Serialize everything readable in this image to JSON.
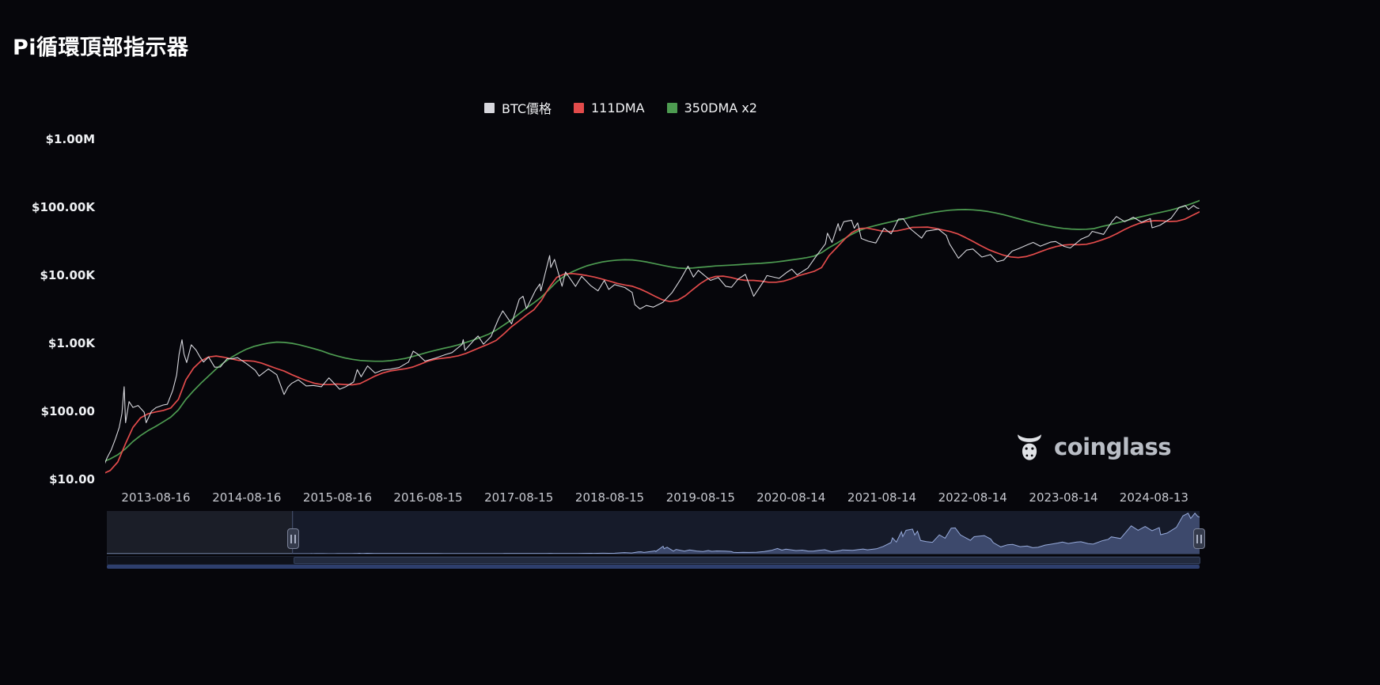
{
  "watermark": {
    "text": "coinglass"
  },
  "chart_data": {
    "type": "line",
    "title": "Pi循環頂部指示器",
    "log_scale": true,
    "legend_position": "top-center",
    "grid": false,
    "ylim": [
      10,
      1000000
    ],
    "y_ticks": [
      {
        "label": "$1.00M",
        "value": 1000000
      },
      {
        "label": "$100.00K",
        "value": 100000
      },
      {
        "label": "$10.00K",
        "value": 10000
      },
      {
        "label": "$1.00K",
        "value": 1000
      },
      {
        "label": "$100.00",
        "value": 100
      },
      {
        "label": "$10.00",
        "value": 10
      }
    ],
    "x_ticks": [
      "2013-08-16",
      "2014-08-16",
      "2015-08-16",
      "2016-08-15",
      "2017-08-15",
      "2018-08-15",
      "2019-08-15",
      "2020-08-14",
      "2021-08-14",
      "2022-08-14",
      "2023-08-14",
      "2024-08-13"
    ],
    "series": [
      {
        "name": "BTC價格",
        "color": "#d7d7dd",
        "width": 1.1,
        "points": [
          [
            "2013-01-05",
            13.4
          ],
          [
            "2013-01-20",
            15.6
          ],
          [
            "2013-02-01",
            20.4
          ],
          [
            "2013-02-19",
            27
          ],
          [
            "2013-03-06",
            40
          ],
          [
            "2013-03-21",
            58
          ],
          [
            "2013-04-01",
            93
          ],
          [
            "2013-04-10",
            230
          ],
          [
            "2013-04-16",
            68
          ],
          [
            "2013-04-30",
            139
          ],
          [
            "2013-05-15",
            114
          ],
          [
            "2013-06-05",
            122
          ],
          [
            "2013-06-30",
            97
          ],
          [
            "2013-07-07",
            68
          ],
          [
            "2013-07-29",
            100
          ],
          [
            "2013-08-16",
            113
          ],
          [
            "2013-09-15",
            124
          ],
          [
            "2013-10-01",
            127
          ],
          [
            "2013-10-23",
            203
          ],
          [
            "2013-11-08",
            340
          ],
          [
            "2013-11-18",
            685
          ],
          [
            "2013-11-30",
            1127
          ],
          [
            "2013-12-07",
            697
          ],
          [
            "2013-12-18",
            522
          ],
          [
            "2014-01-06",
            951
          ],
          [
            "2014-01-26",
            790
          ],
          [
            "2014-02-10",
            636
          ],
          [
            "2014-02-25",
            530
          ],
          [
            "2014-03-15",
            630
          ],
          [
            "2014-04-09",
            445
          ],
          [
            "2014-05-01",
            448
          ],
          [
            "2014-05-29",
            597
          ],
          [
            "2014-06-15",
            590
          ],
          [
            "2014-07-10",
            615
          ],
          [
            "2014-08-16",
            500
          ],
          [
            "2014-09-20",
            400
          ],
          [
            "2014-10-05",
            330
          ],
          [
            "2014-11-12",
            420
          ],
          [
            "2014-12-15",
            345
          ],
          [
            "2015-01-14",
            177
          ],
          [
            "2015-01-30",
            227
          ],
          [
            "2015-02-14",
            257
          ],
          [
            "2015-03-10",
            291
          ],
          [
            "2015-04-12",
            236
          ],
          [
            "2015-05-10",
            240
          ],
          [
            "2015-06-12",
            230
          ],
          [
            "2015-07-12",
            310
          ],
          [
            "2015-08-25",
            211
          ],
          [
            "2015-09-20",
            231
          ],
          [
            "2015-10-20",
            270
          ],
          [
            "2015-11-04",
            410
          ],
          [
            "2015-11-20",
            322
          ],
          [
            "2015-12-15",
            465
          ],
          [
            "2016-01-15",
            365
          ],
          [
            "2016-02-15",
            405
          ],
          [
            "2016-03-15",
            415
          ],
          [
            "2016-04-20",
            440
          ],
          [
            "2016-05-28",
            530
          ],
          [
            "2016-06-16",
            766
          ],
          [
            "2016-07-02",
            700
          ],
          [
            "2016-08-02",
            547
          ],
          [
            "2016-09-15",
            607
          ],
          [
            "2016-10-28",
            690
          ],
          [
            "2016-11-20",
            730
          ],
          [
            "2016-12-30",
            960
          ],
          [
            "2017-01-04",
            1130
          ],
          [
            "2017-01-11",
            790
          ],
          [
            "2017-02-24",
            1180
          ],
          [
            "2017-03-03",
            1280
          ],
          [
            "2017-03-25",
            970
          ],
          [
            "2017-04-25",
            1260
          ],
          [
            "2017-05-25",
            2300
          ],
          [
            "2017-06-11",
            3000
          ],
          [
            "2017-07-16",
            1930
          ],
          [
            "2017-08-17",
            4460
          ],
          [
            "2017-09-01",
            4900
          ],
          [
            "2017-09-15",
            3230
          ],
          [
            "2017-10-21",
            6000
          ],
          [
            "2017-11-08",
            7450
          ],
          [
            "2017-11-12",
            5900
          ],
          [
            "2017-12-17",
            19500
          ],
          [
            "2017-12-22",
            13000
          ],
          [
            "2018-01-06",
            17100
          ],
          [
            "2018-02-06",
            6900
          ],
          [
            "2018-02-20",
            11200
          ],
          [
            "2018-03-30",
            6850
          ],
          [
            "2018-04-24",
            9650
          ],
          [
            "2018-05-29",
            7100
          ],
          [
            "2018-06-29",
            5900
          ],
          [
            "2018-07-24",
            8400
          ],
          [
            "2018-08-11",
            6200
          ],
          [
            "2018-09-04",
            7300
          ],
          [
            "2018-10-15",
            6600
          ],
          [
            "2018-11-14",
            5600
          ],
          [
            "2018-11-25",
            3700
          ],
          [
            "2018-12-15",
            3200
          ],
          [
            "2019-01-10",
            3600
          ],
          [
            "2019-02-08",
            3400
          ],
          [
            "2019-03-16",
            4000
          ],
          [
            "2019-04-23",
            5600
          ],
          [
            "2019-05-27",
            8800
          ],
          [
            "2019-06-26",
            13600
          ],
          [
            "2019-07-17",
            9400
          ],
          [
            "2019-08-06",
            11800
          ],
          [
            "2019-09-25",
            8400
          ],
          [
            "2019-10-26",
            9250
          ],
          [
            "2019-11-25",
            6900
          ],
          [
            "2019-12-18",
            6650
          ],
          [
            "2020-01-14",
            8800
          ],
          [
            "2020-02-13",
            10300
          ],
          [
            "2020-03-16",
            4900
          ],
          [
            "2020-04-30",
            8600
          ],
          [
            "2020-05-08",
            9900
          ],
          [
            "2020-06-27",
            9000
          ],
          [
            "2020-07-27",
            11000
          ],
          [
            "2020-08-17",
            12300
          ],
          [
            "2020-09-08",
            10100
          ],
          [
            "2020-10-21",
            12800
          ],
          [
            "2020-11-24",
            19100
          ],
          [
            "2020-12-31",
            29000
          ],
          [
            "2021-01-08",
            41500
          ],
          [
            "2021-01-27",
            30400
          ],
          [
            "2021-02-21",
            57500
          ],
          [
            "2021-02-28",
            45100
          ],
          [
            "2021-03-13",
            61200
          ],
          [
            "2021-04-14",
            64500
          ],
          [
            "2021-04-25",
            49100
          ],
          [
            "2021-05-08",
            58800
          ],
          [
            "2021-05-23",
            34700
          ],
          [
            "2021-06-21",
            31600
          ],
          [
            "2021-07-20",
            29800
          ],
          [
            "2021-08-23",
            49300
          ],
          [
            "2021-09-21",
            40700
          ],
          [
            "2021-10-20",
            66900
          ],
          [
            "2021-11-09",
            67600
          ],
          [
            "2021-12-04",
            49200
          ],
          [
            "2022-01-22",
            35100
          ],
          [
            "2022-02-10",
            44600
          ],
          [
            "2022-03-29",
            47500
          ],
          [
            "2022-04-30",
            38600
          ],
          [
            "2022-05-12",
            29000
          ],
          [
            "2022-06-18",
            17800
          ],
          [
            "2022-07-20",
            23400
          ],
          [
            "2022-08-15",
            24300
          ],
          [
            "2022-09-21",
            18500
          ],
          [
            "2022-10-25",
            20100
          ],
          [
            "2022-11-21",
            15800
          ],
          [
            "2022-12-17",
            16700
          ],
          [
            "2023-01-21",
            22700
          ],
          [
            "2023-02-16",
            24600
          ],
          [
            "2023-03-22",
            28100
          ],
          [
            "2023-04-14",
            30400
          ],
          [
            "2023-05-12",
            26800
          ],
          [
            "2023-06-23",
            30700
          ],
          [
            "2023-07-13",
            31400
          ],
          [
            "2023-08-17",
            26600
          ],
          [
            "2023-09-11",
            25200
          ],
          [
            "2023-10-24",
            33900
          ],
          [
            "2023-11-24",
            37800
          ],
          [
            "2023-12-08",
            44200
          ],
          [
            "2024-01-23",
            39900
          ],
          [
            "2024-02-28",
            62500
          ],
          [
            "2024-03-14",
            73100
          ],
          [
            "2024-04-17",
            61300
          ],
          [
            "2024-05-21",
            71400
          ],
          [
            "2024-06-24",
            60300
          ],
          [
            "2024-07-29",
            68250
          ],
          [
            "2024-08-05",
            49800
          ],
          [
            "2024-09-06",
            54200
          ],
          [
            "2024-10-21",
            69000
          ],
          [
            "2024-11-22",
            99000
          ],
          [
            "2024-12-17",
            106100
          ],
          [
            "2024-12-30",
            92600
          ],
          [
            "2025-01-20",
            106200
          ],
          [
            "2025-02-03",
            97700
          ],
          [
            "2025-02-12",
            96000
          ]
        ]
      },
      {
        "name": "111DMA",
        "color": "#e24b4b",
        "width": 1.7,
        "start_month": "2013-01",
        "monthly_values": [
          12,
          13.5,
          18,
          33,
          58,
          80,
          92,
          98,
          103,
          112,
          150,
          290,
          430,
          550,
          630,
          650,
          625,
          590,
          560,
          555,
          545,
          510,
          465,
          425,
          390,
          345,
          310,
          280,
          258,
          247,
          248,
          252,
          248,
          245,
          255,
          290,
          330,
          365,
          392,
          408,
          422,
          448,
          495,
          548,
          585,
          605,
          625,
          655,
          710,
          790,
          880,
          975,
          1100,
          1370,
          1740,
          2120,
          2600,
          3130,
          4300,
          6600,
          9300,
          10400,
          10600,
          10300,
          9900,
          9400,
          8800,
          8200,
          7600,
          7200,
          6900,
          6300,
          5600,
          4900,
          4350,
          4100,
          4300,
          5000,
          6200,
          7600,
          8900,
          9600,
          9700,
          9300,
          8700,
          8400,
          8400,
          8200,
          7900,
          7900,
          8200,
          8900,
          9900,
          10600,
          11400,
          13000,
          19500,
          25500,
          33500,
          42500,
          48500,
          49500,
          47000,
          44500,
          44000,
          45000,
          47500,
          50500,
          50800,
          51000,
          49000,
          46400,
          44000,
          40600,
          36000,
          31500,
          27400,
          24000,
          21700,
          19800,
          18600,
          18200,
          18800,
          20300,
          22400,
          24500,
          26400,
          27800,
          28300,
          28100,
          28600,
          30300,
          33000,
          36200,
          40800,
          46700,
          52800,
          58000,
          61600,
          63400,
          63100,
          61800,
          62400,
          66800,
          76000,
          86000
        ]
      },
      {
        "name": "350DMA x2",
        "color": "#4d9b51",
        "width": 1.7,
        "start_month": "2013-01",
        "monthly_values": [
          18,
          20,
          23,
          28,
          36,
          44,
          52,
          60,
          70,
          82,
          105,
          150,
          200,
          260,
          330,
          420,
          520,
          620,
          720,
          820,
          900,
          960,
          1010,
          1040,
          1030,
          1000,
          950,
          890,
          830,
          770,
          700,
          650,
          610,
          580,
          560,
          550,
          545,
          545,
          555,
          575,
          600,
          640,
          690,
          740,
          790,
          840,
          890,
          950,
          1030,
          1120,
          1230,
          1360,
          1560,
          1850,
          2200,
          2700,
          3300,
          3950,
          4800,
          6200,
          8000,
          9700,
          11200,
          12500,
          13800,
          14800,
          15700,
          16300,
          16700,
          16900,
          16800,
          16300,
          15600,
          14800,
          14000,
          13300,
          12800,
          12600,
          12800,
          13100,
          13400,
          13700,
          13900,
          14100,
          14300,
          14600,
          14800,
          15000,
          15300,
          15700,
          16200,
          16800,
          17400,
          18100,
          19100,
          21500,
          25500,
          29500,
          34500,
          40000,
          45500,
          50000,
          53500,
          57000,
          60500,
          64000,
          68000,
          72500,
          77000,
          81000,
          85000,
          88000,
          90500,
          92000,
          92500,
          91500,
          89500,
          86500,
          82500,
          78000,
          73000,
          68000,
          63500,
          59500,
          56000,
          53000,
          50500,
          48800,
          47800,
          47300,
          47500,
          48500,
          52000,
          55000,
          58500,
          62500,
          67000,
          71500,
          76000,
          80500,
          85000,
          90000,
          96500,
          104500,
          114000,
          126000
        ]
      }
    ],
    "navigator": {
      "range_start": "2010-07-17",
      "selection_start": "2013-01-08",
      "selection_end": "2025-02-12",
      "y_max": 112000,
      "line_color": "#9cb0de",
      "fill_color": "rgba(108,130,190,0.45)",
      "early_points": [
        [
          "2010-07-17",
          0.06
        ],
        [
          "2011-02-09",
          1.0
        ],
        [
          "2011-06-08",
          29
        ],
        [
          "2011-11-18",
          2.2
        ],
        [
          "2012-06-01",
          5.3
        ],
        [
          "2012-12-28",
          13.4
        ]
      ]
    }
  }
}
